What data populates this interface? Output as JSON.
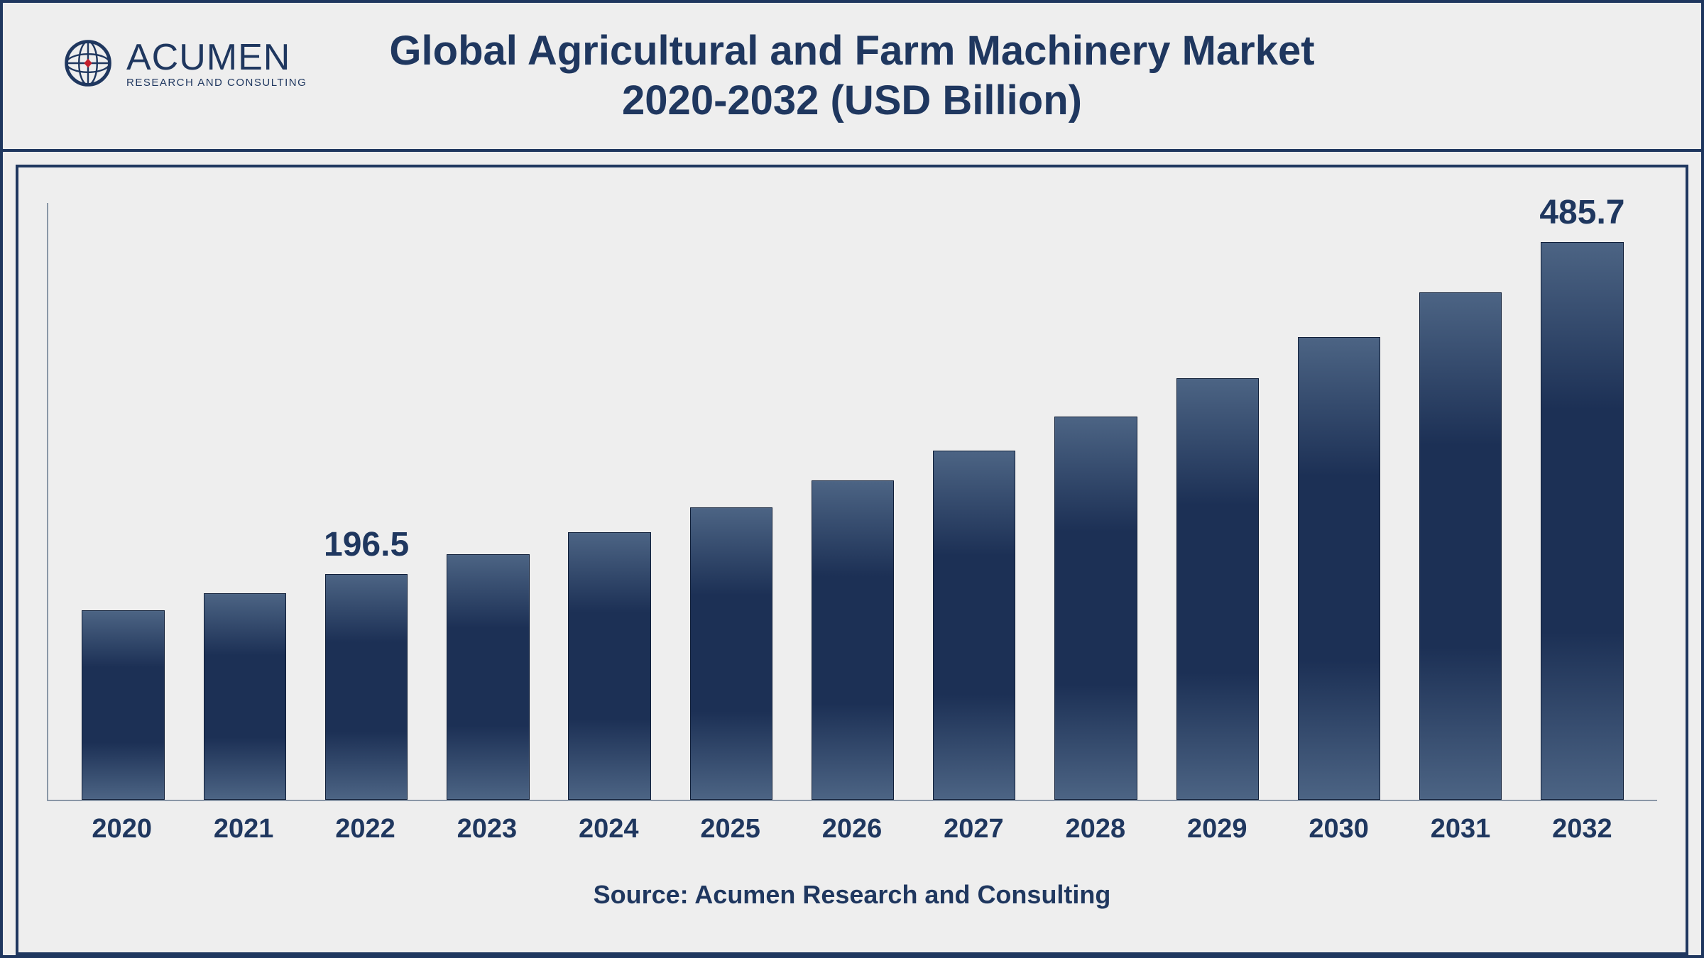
{
  "title": {
    "line1": "Global Agricultural and Farm Machinery Market",
    "line2": "2020-2032 (USD Billion)",
    "color": "#1f375f",
    "fontsize": 58,
    "fontweight": 700
  },
  "logo": {
    "name": "ACUMEN",
    "tagline": "RESEARCH AND CONSULTING",
    "globe_stroke": "#1f375f",
    "globe_accent": "#c4202c"
  },
  "source": "Source: Acumen Research and Consulting",
  "chart": {
    "type": "bar",
    "categories": [
      "2020",
      "2021",
      "2022",
      "2023",
      "2024",
      "2025",
      "2026",
      "2027",
      "2028",
      "2029",
      "2030",
      "2031",
      "2032"
    ],
    "values": [
      165,
      180,
      196.5,
      214,
      233,
      255,
      278,
      304,
      334,
      367,
      403,
      442,
      485.7
    ],
    "value_labels": {
      "2": "196.5",
      "12": "485.7"
    },
    "ylim_max": 520,
    "bar_gradient_top": "#4c6484",
    "bar_gradient_mid": "#1c3055",
    "bar_border": "#0f1e38",
    "bar_width_ratio": 0.68,
    "axis_color": "#8a97a7",
    "xlabel_fontsize": 38,
    "xlabel_fontweight": 700,
    "datalabel_fontsize": 48,
    "datalabel_fontweight": 700,
    "background_color": "#eeeeee",
    "frame_border_color": "#1f375f",
    "frame_border_width": 4
  }
}
